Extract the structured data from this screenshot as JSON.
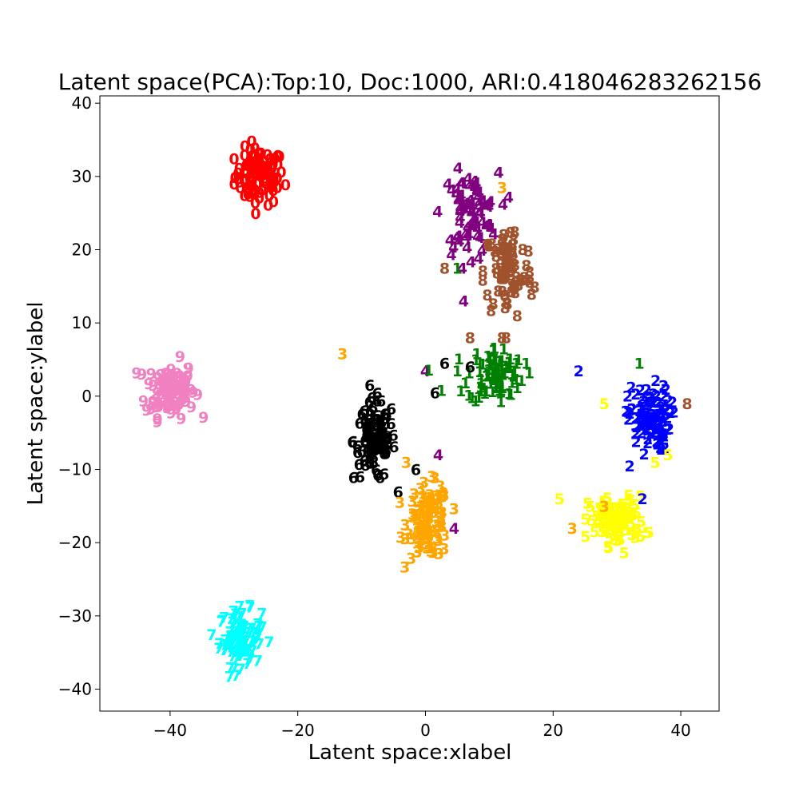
{
  "chart_data": {
    "type": "scatter",
    "title": "Latent space(PCA):Top:10, Doc:1000, ARI:0.418046283262156",
    "xlabel": "Latent space:xlabel",
    "ylabel": "Latent space:ylabel",
    "xlim": [
      -51,
      46
    ],
    "ylim": [
      -43,
      41
    ],
    "xticks": [
      -40,
      -20,
      0,
      20,
      40
    ],
    "xtick_labels": [
      "−40",
      "−20",
      "0",
      "20",
      "40"
    ],
    "yticks": [
      -40,
      -30,
      -20,
      -10,
      0,
      10,
      20,
      30,
      40
    ],
    "ytick_labels": [
      "−40",
      "−30",
      "−20",
      "−10",
      "0",
      "10",
      "20",
      "30",
      "40"
    ],
    "grid": false,
    "marker": "digit label text",
    "colors": {
      "0": "#ff0000",
      "1": "#008000",
      "2": "#0000ff",
      "3": "#ffa500",
      "4": "#800080",
      "5": "#ffff00",
      "6": "#000000",
      "7": "#00ffff",
      "8": "#a0522d",
      "9": "#f080c0"
    },
    "clusters": [
      {
        "label": "0",
        "center": [
          -26,
          30
        ],
        "spread": [
          3.5,
          3.5
        ],
        "count": 100
      },
      {
        "label": "9",
        "center": [
          -40,
          1
        ],
        "spread": [
          3.5,
          3.5
        ],
        "count": 100
      },
      {
        "label": "7",
        "center": [
          -29,
          -33
        ],
        "spread": [
          3.0,
          3.5
        ],
        "count": 100
      },
      {
        "label": "6",
        "center": [
          -8,
          -6
        ],
        "spread": [
          3.0,
          5.0
        ],
        "count": 100
      },
      {
        "label": "3",
        "center": [
          0.5,
          -17
        ],
        "spread": [
          3.0,
          4.5
        ],
        "count": 100
      },
      {
        "label": "4",
        "center": [
          7,
          25
        ],
        "spread": [
          4.0,
          5.0
        ],
        "count": 80
      },
      {
        "label": "8",
        "center": [
          13,
          17
        ],
        "spread": [
          3.5,
          6.0
        ],
        "count": 80
      },
      {
        "label": "1",
        "center": [
          11,
          3
        ],
        "spread": [
          4.0,
          3.5
        ],
        "count": 90
      },
      {
        "label": "2",
        "center": [
          35,
          -3
        ],
        "spread": [
          3.0,
          4.0
        ],
        "count": 100
      },
      {
        "label": "5",
        "center": [
          30,
          -17
        ],
        "spread": [
          4.0,
          3.0
        ],
        "count": 100
      }
    ],
    "outliers": [
      {
        "label": "3",
        "x": -13,
        "y": 5.8
      },
      {
        "label": "3",
        "x": 12,
        "y": 28.5
      },
      {
        "label": "3",
        "x": 28,
        "y": -15
      },
      {
        "label": "3",
        "x": 23,
        "y": -18
      },
      {
        "label": "3",
        "x": -3,
        "y": -9
      },
      {
        "label": "4",
        "x": 0,
        "y": 3.5
      },
      {
        "label": "4",
        "x": 2,
        "y": -8
      },
      {
        "label": "4",
        "x": 4.5,
        "y": -18
      },
      {
        "label": "4",
        "x": 6,
        "y": 13
      },
      {
        "label": "6",
        "x": 3,
        "y": 4.5
      },
      {
        "label": "6",
        "x": 1.5,
        "y": 0.5
      },
      {
        "label": "6",
        "x": -1.5,
        "y": -10
      },
      {
        "label": "6",
        "x": 7,
        "y": 4
      },
      {
        "label": "1",
        "x": 5,
        "y": 17.5
      },
      {
        "label": "1",
        "x": 2.5,
        "y": 0.8
      },
      {
        "label": "1",
        "x": 0.5,
        "y": 3.6
      },
      {
        "label": "1",
        "x": 33.5,
        "y": 4.5
      },
      {
        "label": "8",
        "x": 41,
        "y": -1
      },
      {
        "label": "8",
        "x": 12,
        "y": 8
      },
      {
        "label": "8",
        "x": 7,
        "y": 8
      },
      {
        "label": "8",
        "x": 3,
        "y": 17.5
      },
      {
        "label": "2",
        "x": 24,
        "y": 3.5
      },
      {
        "label": "2",
        "x": 34,
        "y": -14
      },
      {
        "label": "2",
        "x": 32,
        "y": -9.5
      },
      {
        "label": "5",
        "x": 28,
        "y": -1
      },
      {
        "label": "5",
        "x": 38,
        "y": -8
      },
      {
        "label": "5",
        "x": 21,
        "y": -14
      },
      {
        "label": "5",
        "x": 36,
        "y": -9
      }
    ]
  }
}
